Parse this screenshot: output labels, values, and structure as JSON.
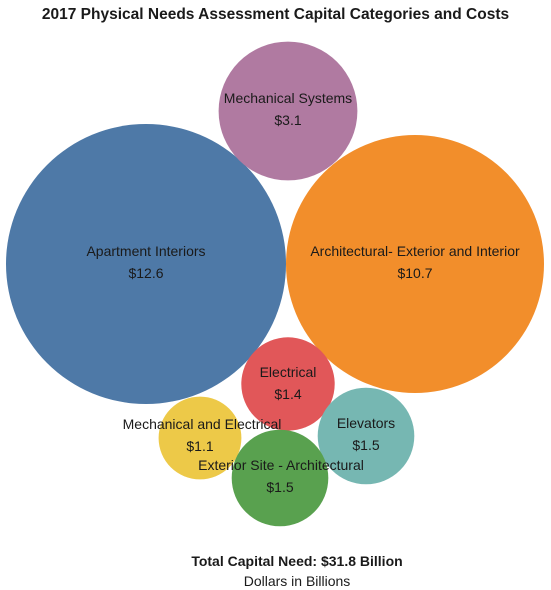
{
  "chart_data": {
    "type": "bubble",
    "title": "2017 Physical Needs Assessment Capital Categories and Costs",
    "unit": "Dollars in Billions",
    "total_label": "Total Capital Need: $31.8 Billion",
    "bubbles": [
      {
        "name": "Apartment Interiors",
        "value": 12.6,
        "label": "$12.6",
        "color": "#4e79a7"
      },
      {
        "name": "Architectural- Exterior and Interior",
        "value": 10.7,
        "label": "$10.7",
        "color": "#f28e2b"
      },
      {
        "name": "Mechanical Systems",
        "value": 3.1,
        "label": "$3.1",
        "color": "#b07aa1"
      },
      {
        "name": "Electrical",
        "value": 1.4,
        "label": "$1.4",
        "color": "#e15759"
      },
      {
        "name": "Elevators",
        "value": 1.5,
        "label": "$1.5",
        "color": "#76b7b2"
      },
      {
        "name": "Mechanical and Electrical",
        "value": 1.1,
        "label": "$1.1",
        "color": "#edc948"
      },
      {
        "name": "Exterior Site - Architectural",
        "value": 1.5,
        "label": "$1.5",
        "color": "#59a14f"
      }
    ]
  }
}
